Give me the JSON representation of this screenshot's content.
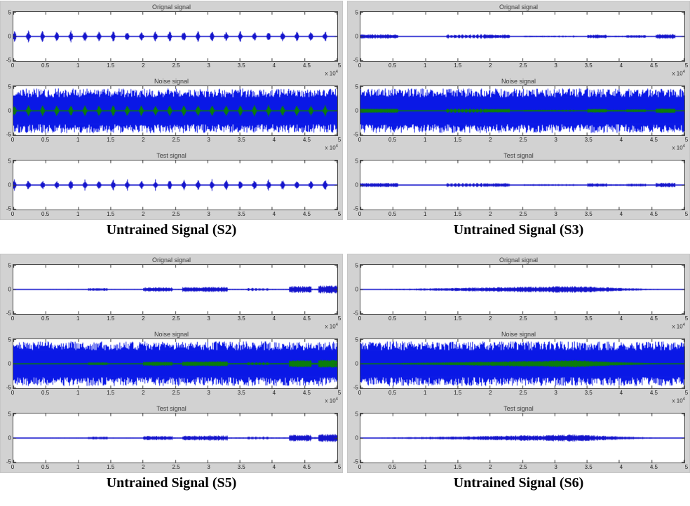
{
  "plot_titles": {
    "original": "Orignal signal",
    "noise": "Noise signal",
    "test": "Test signal"
  },
  "axis": {
    "y_tick_labels": [
      "5",
      "0",
      "-5"
    ],
    "x_tick_labels": [
      "0",
      "0.5",
      "1",
      "1.5",
      "2",
      "2.5",
      "3",
      "3.5",
      "4",
      "4.5",
      "5"
    ],
    "scale_text": "x 10",
    "scale_exponent": "4"
  },
  "colors": {
    "signal_blue": "#1414cc",
    "noise_blue": "#0a18e6",
    "overlay_green": "#0b7d0b",
    "panel_gray": "#d2d2d2",
    "plot_bg": "#ffffff",
    "axis_line": "#4a4a4a",
    "tick_text": "#222222"
  },
  "chart_data": [
    {
      "panel": "S2",
      "caption": "Untrained Signal (S2)",
      "type": "line",
      "xlim": [
        0,
        50000
      ],
      "ylim": [
        -5,
        5
      ],
      "x_scale_label": "x 10^4",
      "subplots": [
        {
          "title": "Orignal signal",
          "content": "signal",
          "show_x_scale": true
        },
        {
          "title": "Noise signal",
          "content": "noise_plus_signal",
          "noise_amplitude": 4.9,
          "show_x_scale": true
        },
        {
          "title": "Test signal",
          "content": "signal",
          "show_x_scale": false
        }
      ],
      "signal": {
        "kind": "pulses",
        "start": 0.01,
        "step": 0.218,
        "count": 23,
        "amplitude": 1.35,
        "half_width": 0.042,
        "baseline": 0.06
      }
    },
    {
      "panel": "S3",
      "caption": "Untrained Signal (S3)",
      "type": "line",
      "xlim": [
        0,
        50000
      ],
      "ylim": [
        -5,
        5
      ],
      "x_scale_label": "x 10^4",
      "subplots": [
        {
          "title": "Orignal signal",
          "content": "signal",
          "show_x_scale": true
        },
        {
          "title": "Noise signal",
          "content": "noise_plus_signal",
          "noise_amplitude": 4.9,
          "show_x_scale": true
        },
        {
          "title": "Test signal",
          "content": "signal",
          "show_x_scale": false
        }
      ],
      "signal": {
        "kind": "segments",
        "baseline": 0.06,
        "segments": [
          [
            0.0,
            0.58,
            0.45
          ],
          [
            0.58,
            1.32,
            0.1
          ],
          [
            1.32,
            1.92,
            0.5,
            "dashed"
          ],
          [
            1.92,
            2.3,
            0.4
          ],
          [
            2.3,
            2.52,
            0.1
          ],
          [
            2.52,
            3.0,
            0.18
          ],
          [
            3.0,
            3.3,
            0.22,
            "dashed"
          ],
          [
            3.3,
            3.5,
            0.12
          ],
          [
            3.5,
            3.8,
            0.4
          ],
          [
            3.8,
            4.1,
            0.18
          ],
          [
            4.1,
            4.4,
            0.3
          ],
          [
            4.4,
            4.55,
            0.12
          ],
          [
            4.55,
            4.85,
            0.5
          ],
          [
            4.85,
            5.0,
            0.1
          ]
        ]
      }
    },
    {
      "panel": "S5",
      "caption": "Untrained Signal (S5)",
      "type": "line",
      "xlim": [
        0,
        50000
      ],
      "ylim": [
        -5,
        5
      ],
      "x_scale_label": "x 10^4",
      "subplots": [
        {
          "title": "Orignal signal",
          "content": "signal",
          "show_x_scale": true
        },
        {
          "title": "Noise signal",
          "content": "noise_plus_signal",
          "noise_amplitude": 4.9,
          "show_x_scale": true
        },
        {
          "title": "Test signal",
          "content": "signal",
          "show_x_scale": false
        }
      ],
      "signal": {
        "kind": "segments",
        "baseline": 0.06,
        "segments": [
          [
            0.0,
            0.55,
            0.07
          ],
          [
            0.55,
            1.15,
            0.12
          ],
          [
            1.15,
            1.45,
            0.3
          ],
          [
            1.45,
            2.0,
            0.12
          ],
          [
            2.0,
            2.45,
            0.45
          ],
          [
            2.45,
            2.6,
            0.15
          ],
          [
            2.6,
            3.0,
            0.5
          ],
          [
            3.0,
            3.3,
            0.55
          ],
          [
            3.3,
            3.6,
            0.15
          ],
          [
            3.6,
            3.95,
            0.35,
            "dashed"
          ],
          [
            3.95,
            4.25,
            0.15
          ],
          [
            4.25,
            4.6,
            0.75
          ],
          [
            4.6,
            4.7,
            0.2
          ],
          [
            4.7,
            5.0,
            0.85
          ]
        ]
      }
    },
    {
      "panel": "S6",
      "caption": "Untrained Signal (S6)",
      "type": "line",
      "xlim": [
        0,
        50000
      ],
      "ylim": [
        -5,
        5
      ],
      "x_scale_label": "x 10^4",
      "subplots": [
        {
          "title": "Orignal signal",
          "content": "signal",
          "show_x_scale": true
        },
        {
          "title": "Noise signal",
          "content": "noise_plus_signal",
          "noise_amplitude": 4.9,
          "show_x_scale": true
        },
        {
          "title": "Test signal",
          "content": "signal",
          "show_x_scale": false
        }
      ],
      "signal": {
        "kind": "smooth",
        "baseline": 0.04,
        "points": [
          [
            0,
            0.05
          ],
          [
            0.3,
            0.12
          ],
          [
            0.8,
            0.2
          ],
          [
            1.3,
            0.3
          ],
          [
            1.8,
            0.42
          ],
          [
            2.2,
            0.5
          ],
          [
            2.5,
            0.62
          ],
          [
            2.8,
            0.6
          ],
          [
            3.0,
            0.72
          ],
          [
            3.3,
            0.78
          ],
          [
            3.6,
            0.6
          ],
          [
            4.0,
            0.35
          ],
          [
            4.4,
            0.18
          ],
          [
            4.8,
            0.08
          ],
          [
            5,
            0.04
          ]
        ]
      }
    }
  ]
}
